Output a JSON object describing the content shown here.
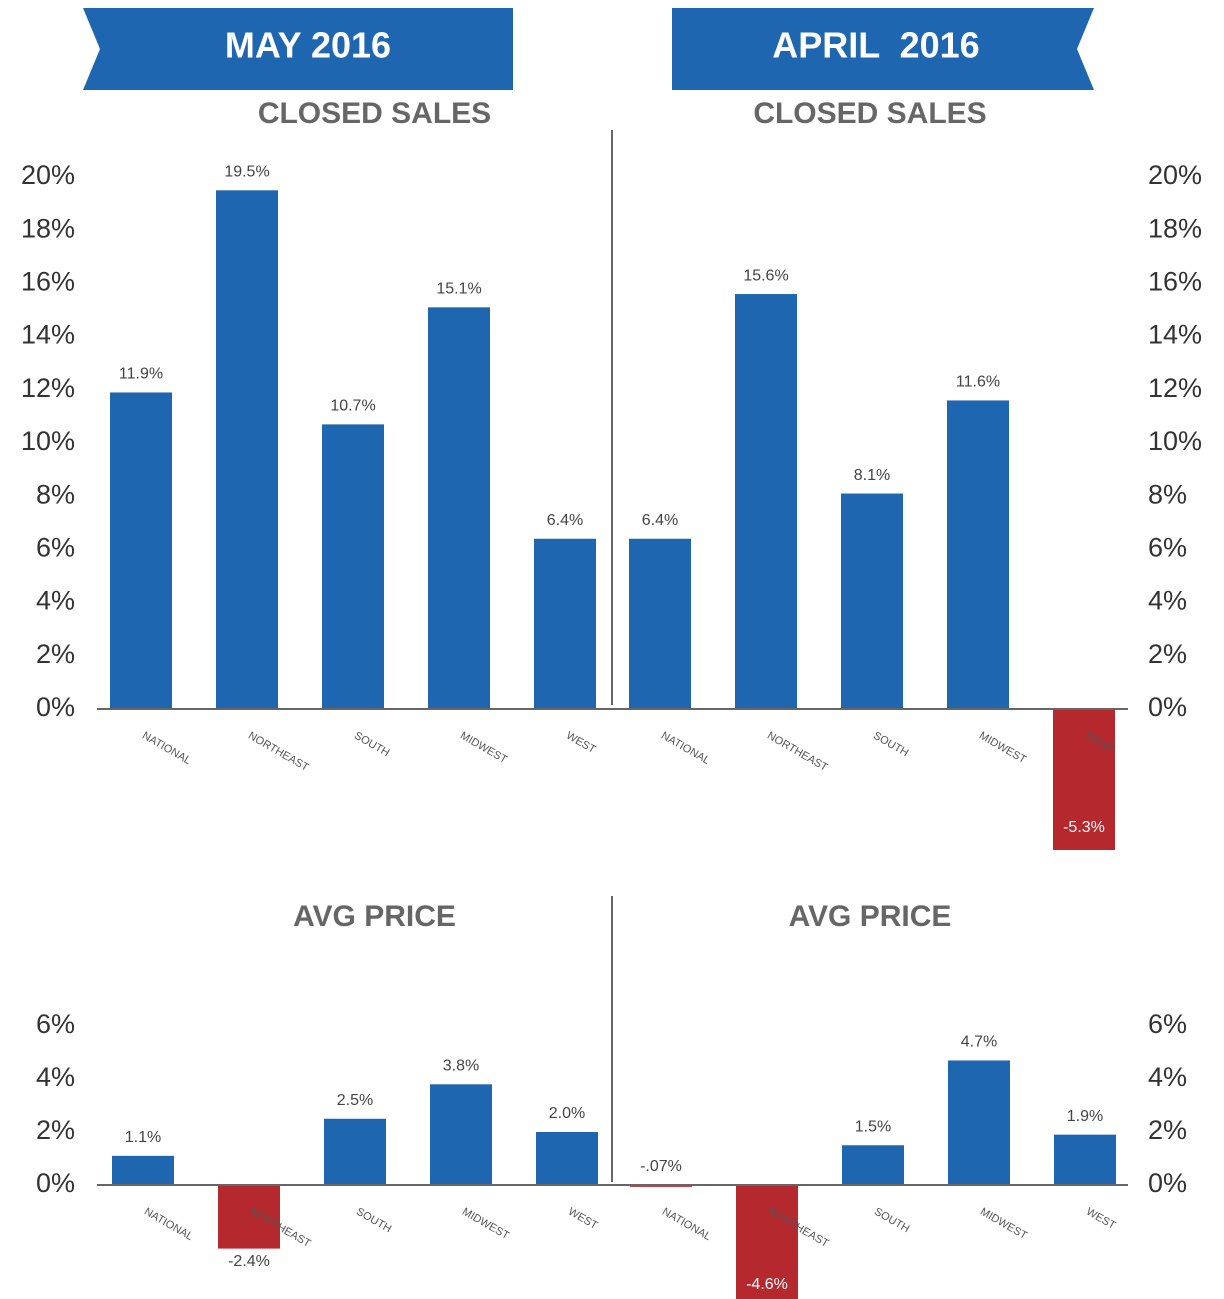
{
  "banners": [
    "MAY 2016",
    "APRIL  2016"
  ],
  "chart_data": [
    {
      "type": "bar",
      "title": "CLOSED SALES",
      "categories": [
        "NATIONAL",
        "NORTHEAST",
        "SOUTH",
        "MIDWEST",
        "WEST"
      ],
      "values": [
        11.9,
        19.5,
        10.7,
        15.1,
        6.4
      ],
      "value_labels": [
        "11.9%",
        "19.5%",
        "10.7%",
        "15.1%",
        "6.4%"
      ],
      "color": "#1f66b1",
      "negative_color": "#b5282e",
      "ylim": [
        -6,
        20
      ],
      "yticks": [
        {
          "value": 0,
          "label": "0%"
        },
        {
          "value": 2,
          "label": "2%"
        },
        {
          "value": 4,
          "label": "4%"
        },
        {
          "value": 6,
          "label": "6%"
        },
        {
          "value": 8,
          "label": "8%"
        },
        {
          "value": 10,
          "label": "10%"
        },
        {
          "value": 12,
          "label": "12%"
        },
        {
          "value": 14,
          "label": "14%"
        },
        {
          "value": 16,
          "label": "16%"
        },
        {
          "value": 18,
          "label": "18%"
        },
        {
          "value": 20,
          "label": "20%"
        }
      ],
      "yaxis_side": "left"
    },
    {
      "type": "bar",
      "title": "CLOSED SALES",
      "categories": [
        "NATIONAL",
        "NORTHEAST",
        "SOUTH",
        "MIDWEST",
        "WEST"
      ],
      "values": [
        6.4,
        15.6,
        8.1,
        11.6,
        -5.3
      ],
      "value_labels": [
        "6.4%",
        "15.6%",
        "8.1%",
        "11.6%",
        "-5.3%"
      ],
      "color": "#1f66b1",
      "negative_color": "#b5282e",
      "ylim": [
        -6,
        20
      ],
      "yticks": [
        {
          "value": 0,
          "label": "0%"
        },
        {
          "value": 2,
          "label": "2%"
        },
        {
          "value": 4,
          "label": "4%"
        },
        {
          "value": 6,
          "label": "6%"
        },
        {
          "value": 8,
          "label": "8%"
        },
        {
          "value": 10,
          "label": "10%"
        },
        {
          "value": 12,
          "label": "12%"
        },
        {
          "value": 14,
          "label": "14%"
        },
        {
          "value": 16,
          "label": "16%"
        },
        {
          "value": 18,
          "label": "18%"
        },
        {
          "value": 20,
          "label": "20%"
        }
      ],
      "yaxis_side": "right"
    },
    {
      "type": "bar",
      "title": "AVG PRICE",
      "categories": [
        "NATIONAL",
        "NORTHEAST",
        "SOUTH",
        "MIDWEST",
        "WEST"
      ],
      "values": [
        1.1,
        -2.4,
        2.5,
        3.8,
        2.0
      ],
      "value_labels": [
        "1.1%",
        "-2.4%",
        "2.5%",
        "3.8%",
        "2.0%"
      ],
      "color": "#1f66b1",
      "negative_color": "#b5282e",
      "ylim": [
        -4,
        6
      ],
      "yticks": [
        {
          "value": 0,
          "label": "0%"
        },
        {
          "value": 2,
          "label": "2%"
        },
        {
          "value": 4,
          "label": "4%"
        },
        {
          "value": 6,
          "label": "6%"
        }
      ],
      "yaxis_side": "left"
    },
    {
      "type": "bar",
      "title": "AVG PRICE",
      "categories": [
        "NATIONAL",
        "NORTHEAST",
        "SOUTH",
        "MIDWEST",
        "WEST"
      ],
      "values": [
        -0.07,
        -4.6,
        1.5,
        4.7,
        1.9
      ],
      "value_labels": [
        "-.07%",
        "-4.6%",
        "1.5%",
        "4.7%",
        "1.9%"
      ],
      "color": "#1f66b1",
      "negative_color": "#b5282e",
      "ylim": [
        -4,
        6
      ],
      "yticks": [
        {
          "value": 0,
          "label": "0%"
        },
        {
          "value": 2,
          "label": "2%"
        },
        {
          "value": 4,
          "label": "4%"
        },
        {
          "value": 6,
          "label": "6%"
        }
      ],
      "yaxis_side": "right"
    }
  ]
}
